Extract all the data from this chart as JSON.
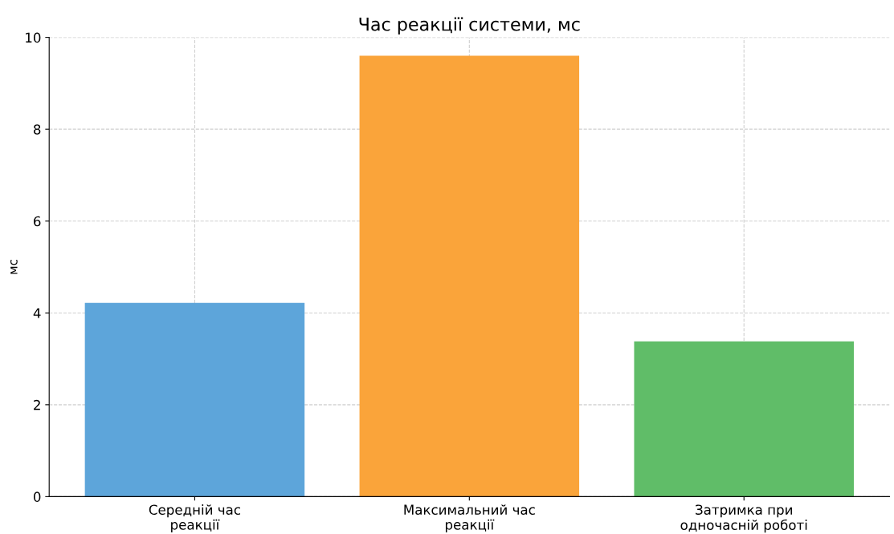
{
  "chart_data": {
    "type": "bar",
    "title": "Час реакції системи, мс",
    "ylabel": "мс",
    "categories": [
      "Середній час\nреакції",
      "Максимальний час\nреакції",
      "Затримка при\nодночасній роботі"
    ],
    "values": [
      4.22,
      9.6,
      3.38
    ],
    "colors": [
      "#5da5da",
      "#faa43a",
      "#60bd68"
    ],
    "ylim": [
      0,
      10
    ],
    "yticks": [
      0,
      2,
      4,
      6,
      8,
      10
    ],
    "grid": true
  }
}
